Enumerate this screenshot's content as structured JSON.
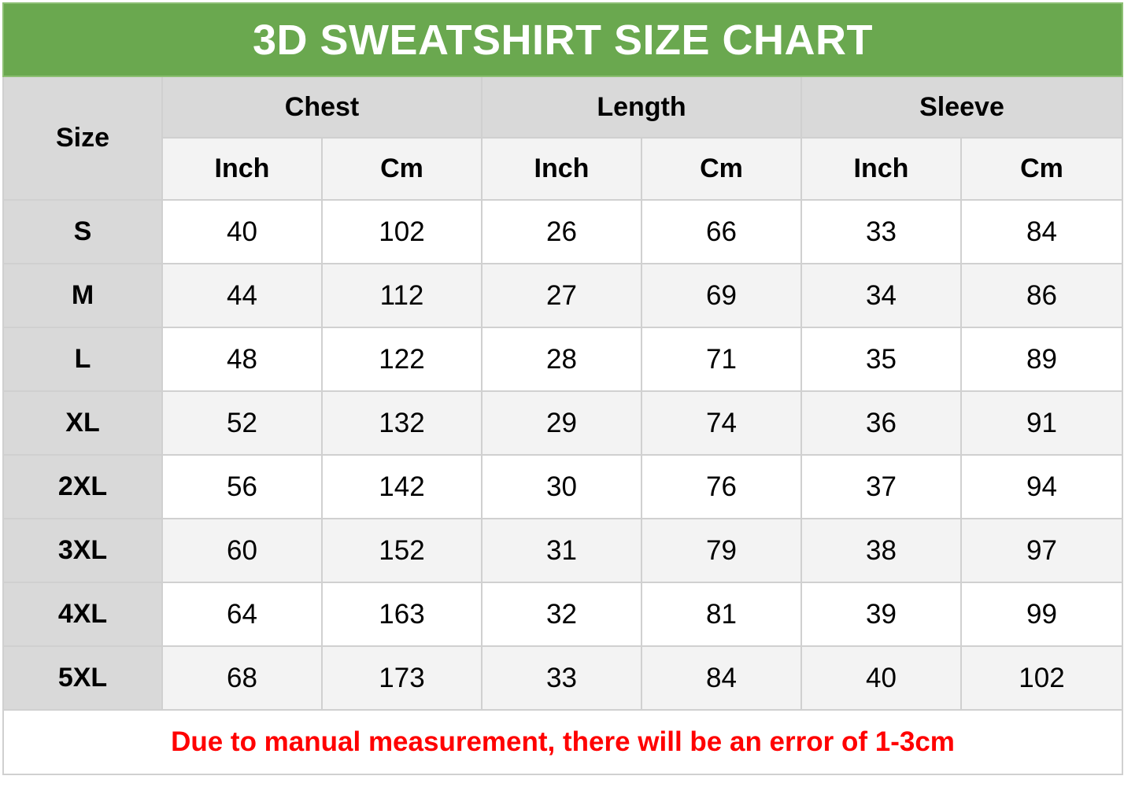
{
  "chart_data": {
    "type": "table",
    "title": "3D SWEATSHIRT SIZE CHART",
    "size_header": "Size",
    "groups": [
      "Chest",
      "Length",
      "Sleeve"
    ],
    "units": [
      "Inch",
      "Cm",
      "Inch",
      "Cm",
      "Inch",
      "Cm"
    ],
    "rows": [
      {
        "size": "S",
        "values": [
          "40",
          "102",
          "26",
          "66",
          "33",
          "84"
        ]
      },
      {
        "size": "M",
        "values": [
          "44",
          "112",
          "27",
          "69",
          "34",
          "86"
        ]
      },
      {
        "size": "L",
        "values": [
          "48",
          "122",
          "28",
          "71",
          "35",
          "89"
        ]
      },
      {
        "size": "XL",
        "values": [
          "52",
          "132",
          "29",
          "74",
          "36",
          "91"
        ]
      },
      {
        "size": "2XL",
        "values": [
          "56",
          "142",
          "30",
          "76",
          "37",
          "94"
        ]
      },
      {
        "size": "3XL",
        "values": [
          "60",
          "152",
          "31",
          "79",
          "38",
          "97"
        ]
      },
      {
        "size": "4XL",
        "values": [
          "64",
          "163",
          "32",
          "81",
          "39",
          "99"
        ]
      },
      {
        "size": "5XL",
        "values": [
          "68",
          "173",
          "33",
          "84",
          "40",
          "102"
        ]
      }
    ],
    "note": "Due to manual measurement, there will be an error of 1-3cm",
    "colors": {
      "title_bg": "#6aa84f",
      "header_bg": "#d9d9d9",
      "alt_row_bg": "#f3f3f3",
      "note_text": "#ff0000"
    }
  }
}
